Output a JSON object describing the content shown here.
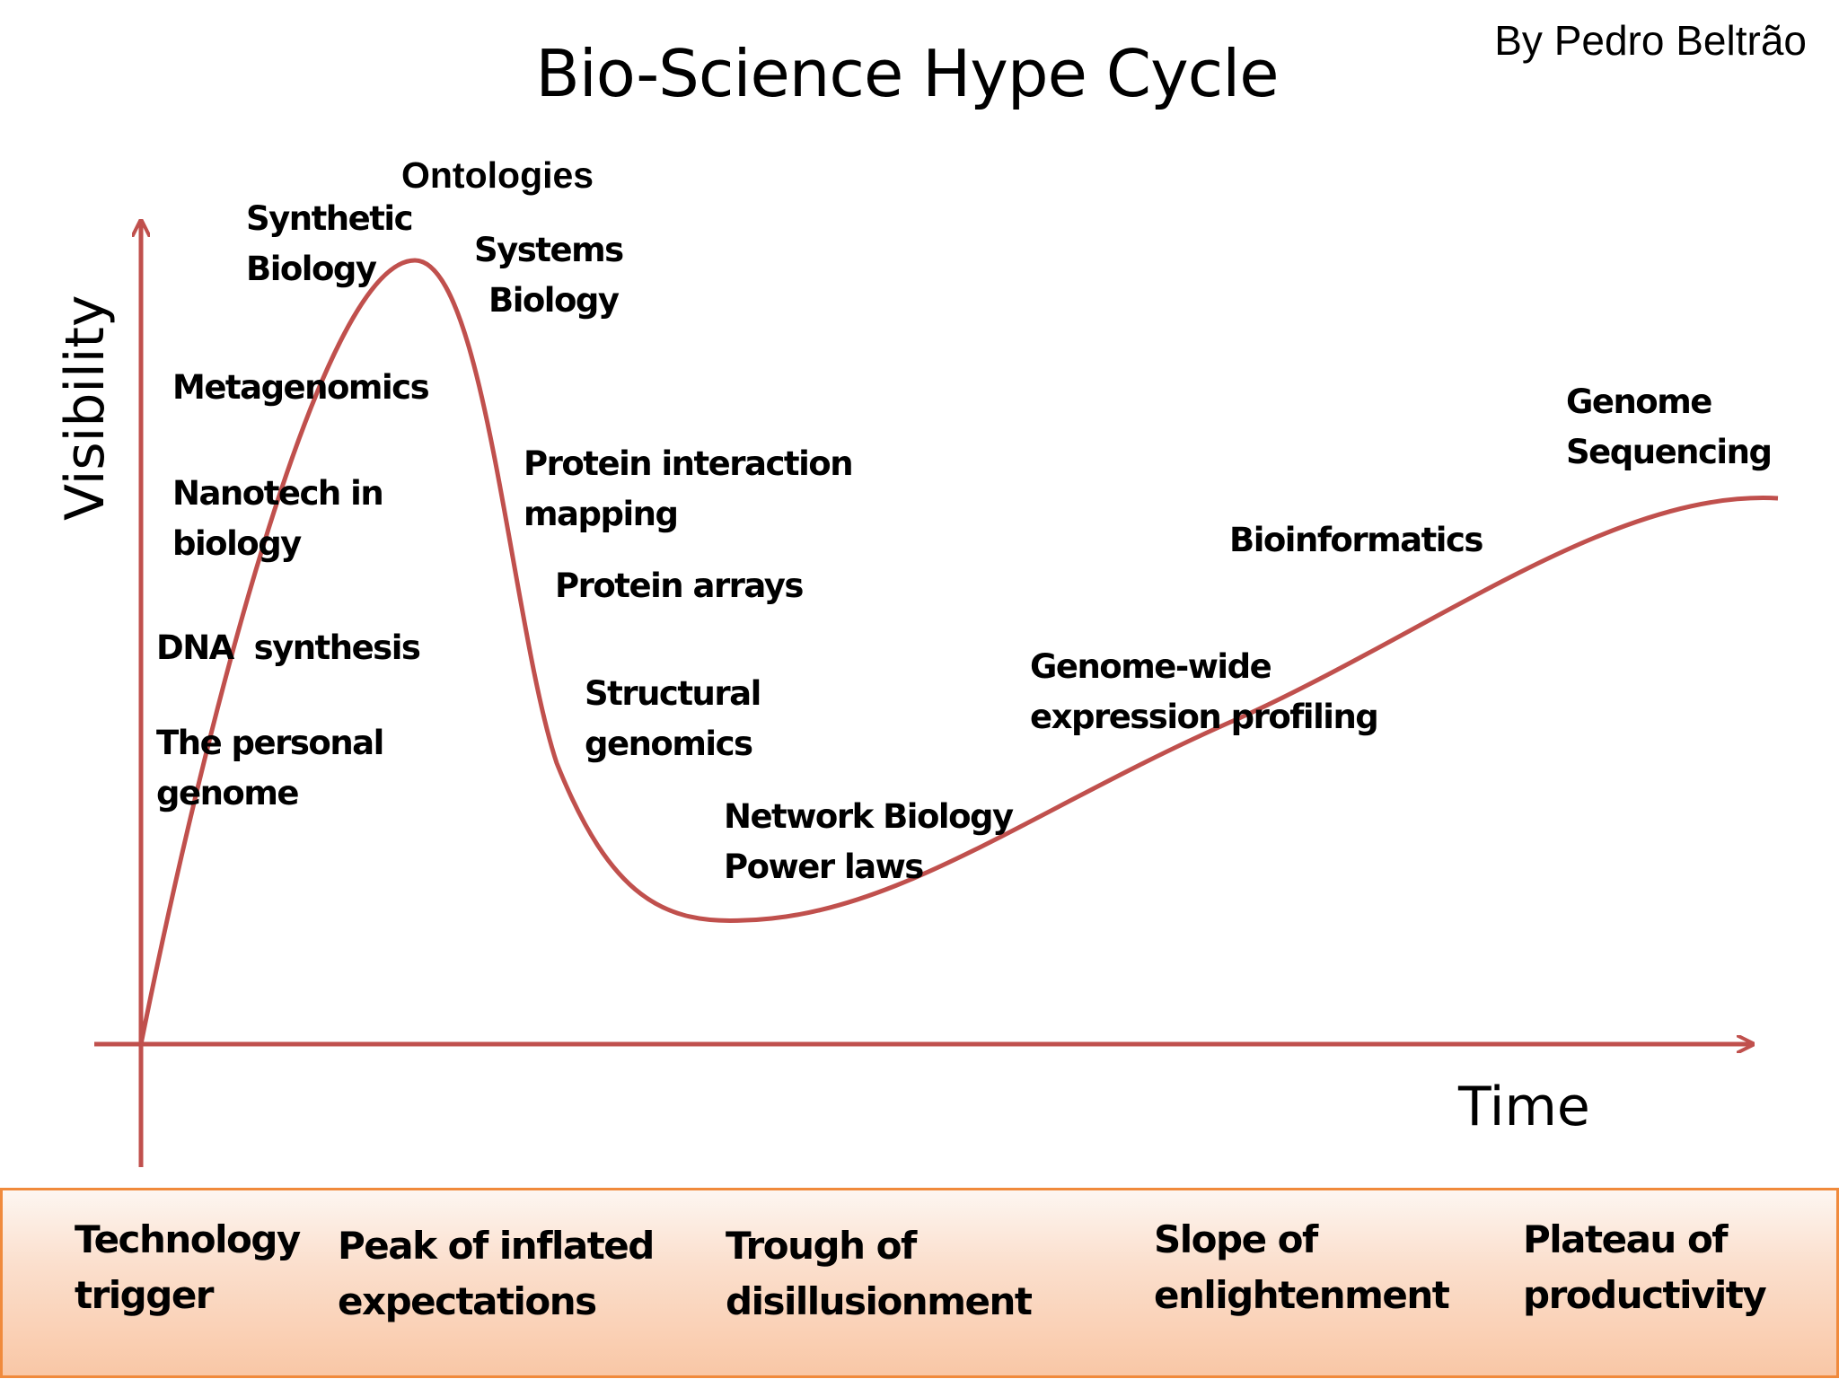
{
  "title": "Bio-Science Hype Cycle",
  "author": "By Pedro Beltrão",
  "axes": {
    "y_label": "Visibility",
    "x_label": "Time"
  },
  "curve_color": "#c0504d",
  "labels": {
    "ontologies": "Ontologies",
    "synthetic_biology": [
      "Synthetic",
      "Biology"
    ],
    "systems_biology": [
      "Systems",
      "Biology"
    ],
    "metagenomics": "Metagenomics",
    "nanotech": [
      "Nanotech in",
      "biology"
    ],
    "dna_synthesis": "DNA  synthesis",
    "personal_genome": [
      "The personal",
      "genome"
    ],
    "protein_interaction": [
      "Protein interaction",
      "mapping"
    ],
    "protein_arrays": "Protein arrays",
    "structural_genomics": [
      "Structural",
      "genomics"
    ],
    "network_biology": [
      "Network Biology",
      "Power laws"
    ],
    "genome_wide": [
      "Genome-wide",
      "expression profiling"
    ],
    "bioinformatics": "Bioinformatics",
    "genome_sequencing": [
      "Genome",
      "Sequencing"
    ]
  },
  "phases": [
    [
      "Technology",
      "trigger"
    ],
    [
      "Peak of inflated",
      "expectations"
    ],
    [
      "Trough of",
      "disillusionment"
    ],
    [
      "Slope of",
      "enlightenment"
    ],
    [
      "Plateau of",
      "productivity"
    ]
  ],
  "phase_bar_colors": {
    "border": "#f08a3c",
    "fill_top": "#fdf6f1",
    "fill_bottom": "#f9c7a6"
  }
}
